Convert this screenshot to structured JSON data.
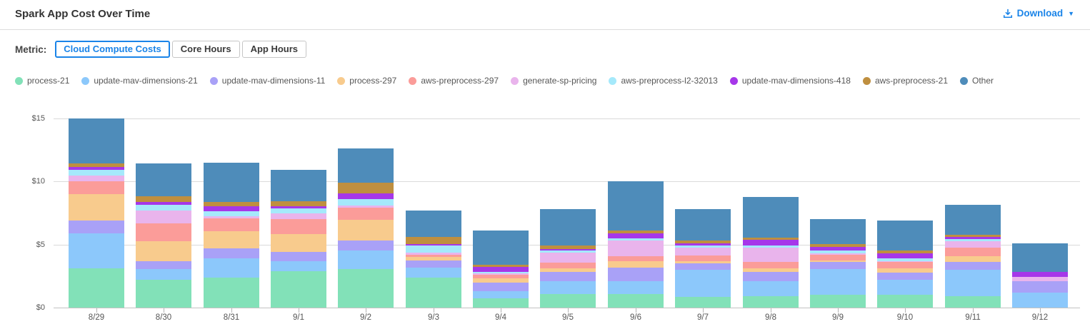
{
  "header": {
    "title": "Spark App Cost Over Time",
    "download_label": "Download",
    "download_caret": "▼"
  },
  "controls": {
    "metric_label": "Metric:",
    "options": [
      {
        "label": "Cloud Compute Costs",
        "active": true
      },
      {
        "label": "Core Hours",
        "active": false
      },
      {
        "label": "App Hours",
        "active": false
      }
    ]
  },
  "colors": {
    "accent_blue": "#1a84e8",
    "title_text": "#333333",
    "gridline": "#dadada",
    "axis_text": "#555555"
  },
  "chart_data": {
    "type": "bar",
    "stacked": true,
    "title": "Spark App Cost Over Time",
    "xlabel": "",
    "ylabel": "",
    "ylim": [
      0,
      15
    ],
    "ytick_values": [
      0,
      5,
      10,
      15
    ],
    "ytick_labels": [
      "$0",
      "$5",
      "$10",
      "$15"
    ],
    "grid": true,
    "legend_position": "top",
    "categories": [
      "8/29",
      "8/30",
      "8/31",
      "9/1",
      "9/2",
      "9/3",
      "9/4",
      "9/5",
      "9/6",
      "9/7",
      "9/8",
      "9/9",
      "9/10",
      "9/11",
      "9/12"
    ],
    "series": [
      {
        "name": "process-21",
        "color": "#82e1b8",
        "values": [
          3.1,
          2.2,
          2.35,
          2.9,
          3.05,
          2.4,
          0.75,
          1.05,
          1.05,
          0.85,
          0.9,
          1.0,
          1.0,
          0.9,
          0.0
        ]
      },
      {
        "name": "update-mav-dimensions-21",
        "color": "#8cc8fb",
        "values": [
          2.8,
          0.85,
          1.55,
          0.75,
          1.5,
          0.75,
          0.55,
          1.05,
          1.05,
          2.15,
          1.2,
          2.05,
          1.2,
          2.1,
          1.2
        ]
      },
      {
        "name": "update-mav-dimensions-11",
        "color": "#a9a1f7",
        "values": [
          1.0,
          0.65,
          0.8,
          0.75,
          0.75,
          0.6,
          0.65,
          0.75,
          1.05,
          0.5,
          0.75,
          0.55,
          0.55,
          0.6,
          0.9
        ]
      },
      {
        "name": "process-297",
        "color": "#f8cb8d",
        "values": [
          2.1,
          1.55,
          1.35,
          1.4,
          1.65,
          0.25,
          0.35,
          0.25,
          0.5,
          0.2,
          0.25,
          0.15,
          0.35,
          0.5,
          0.0
        ]
      },
      {
        "name": "aws-preprocess-297",
        "color": "#fb9c99",
        "values": [
          1.0,
          1.45,
          1.0,
          1.2,
          1.0,
          0.2,
          0.3,
          0.45,
          0.45,
          0.45,
          0.5,
          0.45,
          0.5,
          0.65,
          0.0
        ]
      },
      {
        "name": "generate-sp-pricing",
        "color": "#e9b4ec",
        "values": [
          0.45,
          1.0,
          0.2,
          0.45,
          0.15,
          0.15,
          0.1,
          0.8,
          1.2,
          0.6,
          1.15,
          0.1,
          0.1,
          0.5,
          0.35
        ]
      },
      {
        "name": "aws-preprocess-l2-32013",
        "color": "#a5e9fb",
        "values": [
          0.5,
          0.45,
          0.4,
          0.4,
          0.5,
          0.55,
          0.1,
          0.15,
          0.2,
          0.15,
          0.2,
          0.25,
          0.2,
          0.2,
          0.0
        ]
      },
      {
        "name": "update-mav-dimensions-418",
        "color": "#a637e9",
        "values": [
          0.2,
          0.25,
          0.4,
          0.2,
          0.45,
          0.15,
          0.45,
          0.15,
          0.4,
          0.2,
          0.4,
          0.25,
          0.4,
          0.15,
          0.4
        ]
      },
      {
        "name": "aws-preprocess-21",
        "color": "#bf8f3f",
        "values": [
          0.3,
          0.45,
          0.35,
          0.4,
          0.85,
          0.55,
          0.15,
          0.25,
          0.2,
          0.2,
          0.2,
          0.25,
          0.2,
          0.2,
          0.0
        ]
      },
      {
        "name": "Other",
        "color": "#4e8cba",
        "values": [
          3.55,
          2.6,
          3.1,
          2.45,
          2.7,
          2.1,
          2.7,
          2.9,
          3.9,
          2.5,
          3.2,
          1.95,
          2.4,
          2.35,
          2.25
        ]
      }
    ]
  }
}
